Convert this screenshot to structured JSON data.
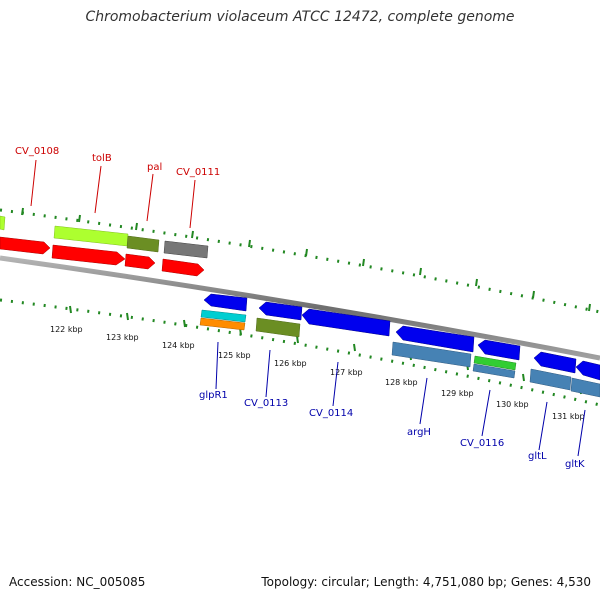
{
  "header": {
    "title": "Chromobacterium violaceum ATCC 12472, complete genome"
  },
  "footer": {
    "accession": "Accession: NC_005085",
    "summary": "Topology: circular; Length: 4,751,080 bp; Genes: 4,530"
  },
  "colors": {
    "backbone": "#888888",
    "tick": "#228822",
    "forward_label": "#cc0000",
    "reverse_label": "#0000aa"
  },
  "scale_ticks": [
    "122 kbp",
    "123 kbp",
    "124 kbp",
    "125 kbp",
    "126 kbp",
    "127 kbp",
    "128 kbp",
    "129 kbp",
    "130 kbp",
    "131 kbp"
  ],
  "forward_genes": [
    {
      "label": "CV_0108",
      "color": "#ff0000"
    },
    {
      "label": "tolB",
      "color": "#ff0000"
    },
    {
      "label": "pal",
      "color": "#ff0000"
    },
    {
      "label": "CV_0111",
      "color": "#ff0000"
    }
  ],
  "reverse_genes": [
    {
      "label": "glpR1",
      "color": "#0000ee"
    },
    {
      "label": "CV_0113",
      "color": "#0000ee"
    },
    {
      "label": "CV_0114",
      "color": "#0000ee"
    },
    {
      "label": "argH",
      "color": "#0000ee"
    },
    {
      "label": "CV_0116",
      "color": "#0000ee"
    },
    {
      "label": "gltL",
      "color": "#0000ee"
    },
    {
      "label": "gltK",
      "color": "#0000ee"
    }
  ],
  "cog_bar_colors": [
    "#adff2f",
    "#6b8e23",
    "#696969",
    "#00ced1",
    "#ff8c00",
    "#4682b4",
    "#32cd32"
  ]
}
